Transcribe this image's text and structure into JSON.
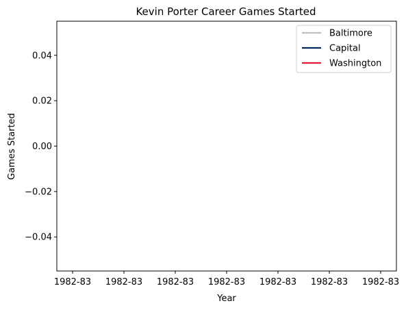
{
  "chart_data": {
    "type": "line",
    "title": "Kevin Porter  Career Games Started",
    "xlabel": "Year",
    "ylabel": "Games Started",
    "x_tick_labels": [
      "1982-83",
      "1982-83",
      "1982-83",
      "1982-83",
      "1982-83",
      "1982-83",
      "1982-83"
    ],
    "y_ticks": [
      -0.04,
      -0.02,
      0.0,
      0.02,
      0.04
    ],
    "y_tick_labels": [
      "−0.04",
      "−0.02",
      "0.00",
      "0.02",
      "0.04"
    ],
    "ylim": [
      -0.055,
      0.055
    ],
    "grid": false,
    "legend_position": "top-right",
    "series": [
      {
        "name": "Baltimore",
        "color": "#c0c0c0",
        "values": []
      },
      {
        "name": "Capital",
        "color": "#002b5c",
        "values": []
      },
      {
        "name": "Washington",
        "color": "#e31837",
        "values": []
      }
    ]
  }
}
